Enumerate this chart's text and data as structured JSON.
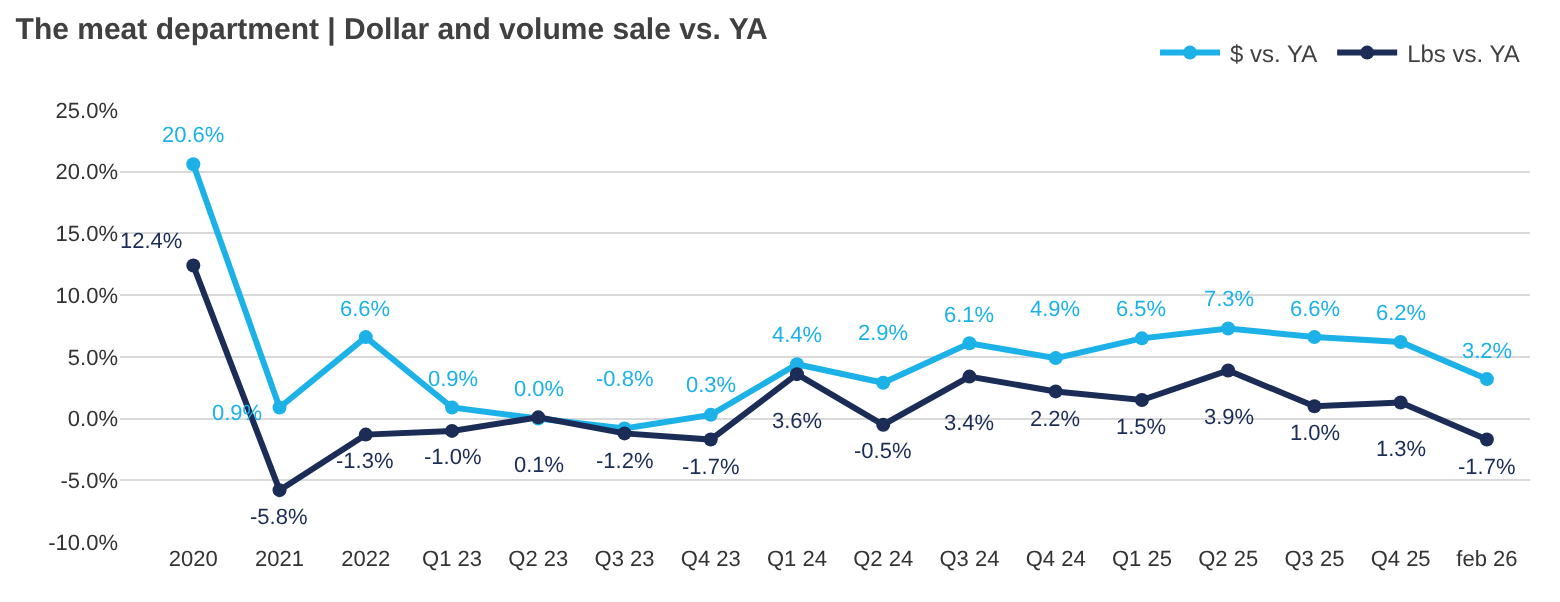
{
  "chart_data": {
    "type": "line",
    "title": "The meat department | Dollar and volume sale vs. YA",
    "categories": [
      "2020",
      "2021",
      "2022",
      "Q1 23",
      "Q2 23",
      "Q3 23",
      "Q4 23",
      "Q1 24",
      "Q2 24",
      "Q3 24",
      "Q4 24",
      "Q1 25",
      "Q2 25",
      "Q3 25",
      "Q4 25",
      "feb 26"
    ],
    "series": [
      {
        "name": "$ vs. YA",
        "color": "#1cb2e8",
        "values": [
          20.6,
          0.9,
          6.6,
          0.9,
          0.0,
          -0.8,
          0.3,
          4.4,
          2.9,
          6.1,
          4.9,
          6.5,
          7.3,
          6.6,
          6.2,
          3.2
        ],
        "value_labels": [
          "20.6%",
          "0.9%",
          "6.6%",
          "0.9%",
          "0.0%",
          "-0.8%",
          "0.3%",
          "4.4%",
          "2.9%",
          "6.1%",
          "4.9%",
          "6.5%",
          "7.3%",
          "6.6%",
          "6.2%",
          "3.2%"
        ]
      },
      {
        "name": "Lbs vs. YA",
        "color": "#1b2d57",
        "values": [
          12.4,
          -5.8,
          -1.3,
          -1.0,
          0.1,
          -1.2,
          -1.7,
          3.6,
          -0.5,
          3.4,
          2.2,
          1.5,
          3.9,
          1.0,
          1.3,
          -1.7
        ],
        "value_labels": [
          "12.4%",
          "-5.8%",
          "-1.3%",
          "-1.0%",
          "0.1%",
          "-1.2%",
          "-1.7%",
          "3.6%",
          "-0.5%",
          "3.4%",
          "2.2%",
          "1.5%",
          "3.9%",
          "1.0%",
          "1.3%",
          "-1.7%"
        ]
      }
    ],
    "ylim": [
      -10,
      25
    ],
    "yticks": [
      {
        "value": -10,
        "label": "-10.0%"
      },
      {
        "value": -5,
        "label": "-5.0%"
      },
      {
        "value": 0,
        "label": "0.0%"
      },
      {
        "value": 5,
        "label": "5.0%"
      },
      {
        "value": 10,
        "label": "10.0%"
      },
      {
        "value": 15,
        "label": "15.0%"
      },
      {
        "value": 20,
        "label": "20.0%"
      },
      {
        "value": 25,
        "label": "25.0%"
      }
    ],
    "grid": "y",
    "legend": "top right",
    "marker": "circle",
    "line_style": "solid"
  }
}
